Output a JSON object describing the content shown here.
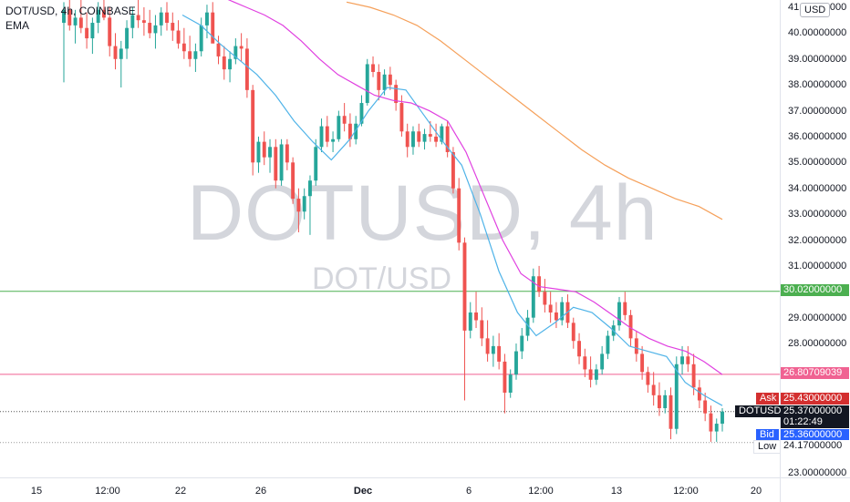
{
  "header": {
    "symbol_line": "DOT/USD, 4h, COINBASE",
    "indicator": "EMA"
  },
  "watermark": {
    "main": "DOTUSD, 4h",
    "sub": "DOT/USD"
  },
  "currency_button": "USD",
  "y_axis": {
    "ticks": [
      "41.00000000",
      "40.00000000",
      "39.00000000",
      "38.00000000",
      "37.00000000",
      "36.00000000",
      "35.00000000",
      "34.00000000",
      "33.00000000",
      "32.00000000",
      "31.00000000",
      "29.00000000",
      "28.00000000",
      "23.00000000"
    ],
    "tick_values": [
      41,
      40,
      39,
      38,
      37,
      36,
      35,
      34,
      33,
      32,
      31,
      29,
      28,
      23
    ]
  },
  "x_axis": {
    "ticks": [
      "15",
      "12:00",
      "22",
      "26",
      "Dec",
      "6",
      "12:00",
      "13",
      "12:00",
      "20"
    ]
  },
  "price_labels": {
    "green_line": "30.02000000",
    "pink_line": "26.80709039",
    "ask_label": "Ask",
    "ask_value": "25.43000000",
    "symbol_label": "DOTUSD",
    "last_value": "25.37000000",
    "countdown": "01:22:49",
    "bid_label": "Bid",
    "bid_value": "25.36000000",
    "low_label": "Low",
    "low_value": "24.17000000"
  },
  "colors": {
    "up": "#26a69a",
    "down": "#ef5350",
    "ema_fast": "#4fb3e8",
    "ema_mid": "#e040e0",
    "ema_slow": "#f5a05a",
    "green_line": "#4caf50",
    "pink_line": "#f06292",
    "ask_bg": "#d32f2f",
    "bid_bg": "#2962ff"
  },
  "chart_data": {
    "type": "candlestick",
    "ylim": [
      22.5,
      41.2
    ],
    "candles_ohlc": [
      [
        40.4,
        41.2,
        38.1,
        40.9
      ],
      [
        40.9,
        41.5,
        40.1,
        40.3
      ],
      [
        40.3,
        40.9,
        39.6,
        40.6
      ],
      [
        40.6,
        41.3,
        40.0,
        40.2
      ],
      [
        40.2,
        40.8,
        39.4,
        39.8
      ],
      [
        39.8,
        40.6,
        39.2,
        40.4
      ],
      [
        40.4,
        41.2,
        40.0,
        40.9
      ],
      [
        40.9,
        41.4,
        40.5,
        40.6
      ],
      [
        40.6,
        41.0,
        39.1,
        39.5
      ],
      [
        39.5,
        40.0,
        38.6,
        39.0
      ],
      [
        39.0,
        39.7,
        37.9,
        39.4
      ],
      [
        39.4,
        40.5,
        39.0,
        40.2
      ],
      [
        40.2,
        41.0,
        39.8,
        40.7
      ],
      [
        40.7,
        41.3,
        40.2,
        40.5
      ],
      [
        40.5,
        41.0,
        39.9,
        40.4
      ],
      [
        40.4,
        40.9,
        39.8,
        40.0
      ],
      [
        40.0,
        40.7,
        39.4,
        40.3
      ],
      [
        40.3,
        41.0,
        39.9,
        40.8
      ],
      [
        40.8,
        41.2,
        40.1,
        40.4
      ],
      [
        40.4,
        40.8,
        39.7,
        40.1
      ],
      [
        40.1,
        40.5,
        39.4,
        39.6
      ],
      [
        39.6,
        40.2,
        39.0,
        39.3
      ],
      [
        39.3,
        39.9,
        38.7,
        39.0
      ],
      [
        39.0,
        39.6,
        38.5,
        39.3
      ],
      [
        39.3,
        40.6,
        39.1,
        40.3
      ],
      [
        40.3,
        41.1,
        39.8,
        40.8
      ],
      [
        40.8,
        41.2,
        39.9,
        39.6
      ],
      [
        39.6,
        39.9,
        38.8,
        39.1
      ],
      [
        39.1,
        39.5,
        38.2,
        38.6
      ],
      [
        38.6,
        39.3,
        38.1,
        39.0
      ],
      [
        39.0,
        39.8,
        38.8,
        39.5
      ],
      [
        39.5,
        40.0,
        38.9,
        39.4
      ],
      [
        39.4,
        39.8,
        37.5,
        37.8
      ],
      [
        37.8,
        38.0,
        34.5,
        35.0
      ],
      [
        35.0,
        36.0,
        34.6,
        35.8
      ],
      [
        35.8,
        36.2,
        34.9,
        35.2
      ],
      [
        35.2,
        35.9,
        34.6,
        35.6
      ],
      [
        35.6,
        35.9,
        34.0,
        34.3
      ],
      [
        34.3,
        35.9,
        34.1,
        35.7
      ],
      [
        35.7,
        35.9,
        34.7,
        35.0
      ],
      [
        35.0,
        35.2,
        33.4,
        33.6
      ],
      [
        33.6,
        34.0,
        32.3,
        33.1
      ],
      [
        33.1,
        34.0,
        32.8,
        33.7
      ],
      [
        33.7,
        34.5,
        32.2,
        34.3
      ],
      [
        34.3,
        35.9,
        34.1,
        35.6
      ],
      [
        35.6,
        36.7,
        35.4,
        36.4
      ],
      [
        36.4,
        36.8,
        35.6,
        35.8
      ],
      [
        35.8,
        36.2,
        35.4,
        35.9
      ],
      [
        35.9,
        37.0,
        35.8,
        36.8
      ],
      [
        36.8,
        37.3,
        36.2,
        36.5
      ],
      [
        36.5,
        36.9,
        35.6,
        35.9
      ],
      [
        35.9,
        36.8,
        35.7,
        36.5
      ],
      [
        36.5,
        37.6,
        36.4,
        37.3
      ],
      [
        37.3,
        39.0,
        37.2,
        38.8
      ],
      [
        38.8,
        39.1,
        38.3,
        38.5
      ],
      [
        38.5,
        38.8,
        37.4,
        37.8
      ],
      [
        37.8,
        38.6,
        37.6,
        38.4
      ],
      [
        38.4,
        38.7,
        37.8,
        38.0
      ],
      [
        38.0,
        38.2,
        37.0,
        37.3
      ],
      [
        37.3,
        37.6,
        36.0,
        36.2
      ],
      [
        36.2,
        36.5,
        35.2,
        35.6
      ],
      [
        35.6,
        36.4,
        35.3,
        36.2
      ],
      [
        36.2,
        36.5,
        35.6,
        35.8
      ],
      [
        35.8,
        36.3,
        35.5,
        36.1
      ],
      [
        36.1,
        36.6,
        35.8,
        36.0
      ],
      [
        36.0,
        36.5,
        35.6,
        35.8
      ],
      [
        35.8,
        36.5,
        35.7,
        36.4
      ],
      [
        36.4,
        36.6,
        35.2,
        35.4
      ],
      [
        35.4,
        35.6,
        33.8,
        34.0
      ],
      [
        34.0,
        34.4,
        31.6,
        31.9
      ],
      [
        31.9,
        32.1,
        25.8,
        28.5
      ],
      [
        28.5,
        29.6,
        28.2,
        29.2
      ],
      [
        29.2,
        30.0,
        28.6,
        28.9
      ],
      [
        28.9,
        29.4,
        27.9,
        28.2
      ],
      [
        28.2,
        28.9,
        27.3,
        27.6
      ],
      [
        27.6,
        28.3,
        27.1,
        27.9
      ],
      [
        27.9,
        28.4,
        27.0,
        27.3
      ],
      [
        27.3,
        27.6,
        25.3,
        26.1
      ],
      [
        26.1,
        27.0,
        25.9,
        26.8
      ],
      [
        26.8,
        28.0,
        26.6,
        27.7
      ],
      [
        27.7,
        28.6,
        27.4,
        28.3
      ],
      [
        28.3,
        29.3,
        28.1,
        29.0
      ],
      [
        29.0,
        30.9,
        28.8,
        30.6
      ],
      [
        30.6,
        31.0,
        29.8,
        30.0
      ],
      [
        30.0,
        30.5,
        29.2,
        29.5
      ],
      [
        29.5,
        30.0,
        28.8,
        29.2
      ],
      [
        29.2,
        29.6,
        28.6,
        28.9
      ],
      [
        28.9,
        29.8,
        28.7,
        29.6
      ],
      [
        29.6,
        29.9,
        28.6,
        28.8
      ],
      [
        28.8,
        29.0,
        27.8,
        28.1
      ],
      [
        28.1,
        28.4,
        27.2,
        27.5
      ],
      [
        27.5,
        27.8,
        26.7,
        27.0
      ],
      [
        27.0,
        27.5,
        26.3,
        26.6
      ],
      [
        26.6,
        27.2,
        26.4,
        27.0
      ],
      [
        27.0,
        27.9,
        26.8,
        27.6
      ],
      [
        27.6,
        28.5,
        27.4,
        28.3
      ],
      [
        28.3,
        28.9,
        28.1,
        28.7
      ],
      [
        28.7,
        29.8,
        28.5,
        29.6
      ],
      [
        29.6,
        30.0,
        28.9,
        29.1
      ],
      [
        29.1,
        29.3,
        27.9,
        28.2
      ],
      [
        28.2,
        28.5,
        27.3,
        27.6
      ],
      [
        27.6,
        27.9,
        26.6,
        26.9
      ],
      [
        26.9,
        27.1,
        26.1,
        26.4
      ],
      [
        26.4,
        26.9,
        25.6,
        26.0
      ],
      [
        26.0,
        26.5,
        25.2,
        25.5
      ],
      [
        25.5,
        26.2,
        25.3,
        26.0
      ],
      [
        26.0,
        26.3,
        24.3,
        24.7
      ],
      [
        24.7,
        27.5,
        24.5,
        27.2
      ],
      [
        27.2,
        27.9,
        26.8,
        27.5
      ],
      [
        27.5,
        27.9,
        26.9,
        27.2
      ],
      [
        27.2,
        27.6,
        26.0,
        26.3
      ],
      [
        26.3,
        26.6,
        25.5,
        25.8
      ],
      [
        25.8,
        26.1,
        25.0,
        25.3
      ],
      [
        25.3,
        25.6,
        24.2,
        24.6
      ],
      [
        24.6,
        25.1,
        24.2,
        24.9
      ],
      [
        24.9,
        25.5,
        24.6,
        25.37
      ]
    ],
    "ema_fast": [
      40.7,
      40.3,
      39.6,
      39.0,
      38.4,
      37.6,
      36.6,
      35.8,
      35.1,
      35.9,
      37.0,
      37.9,
      37.8,
      36.8,
      35.8,
      34.9,
      33.0,
      30.8,
      29.2,
      28.3,
      28.8,
      29.4,
      29.2,
      28.6,
      27.9,
      27.7,
      27.5,
      26.5,
      26.0,
      25.6
    ],
    "ema_mid": [
      41.3,
      41.0,
      40.7,
      40.3,
      39.7,
      39.0,
      38.4,
      38.0,
      37.6,
      37.4,
      37.3,
      37.0,
      36.6,
      35.4,
      33.7,
      32.0,
      30.7,
      30.2,
      30.1,
      30.0,
      29.6,
      29.1,
      28.6,
      28.2,
      27.9,
      27.7,
      27.3,
      26.8
    ],
    "ema_slow": [
      41.2,
      41.0,
      40.7,
      40.3,
      39.7,
      39.0,
      38.3,
      37.6,
      36.9,
      36.2,
      35.5,
      34.9,
      34.4,
      34.0,
      33.6,
      33.3,
      32.8
    ],
    "lines": [
      {
        "label": "30.02000000",
        "value": 30.02
      },
      {
        "label": "26.80709039",
        "value": 26.80709039
      }
    ],
    "last_price": 25.37,
    "low_price": 24.17
  }
}
